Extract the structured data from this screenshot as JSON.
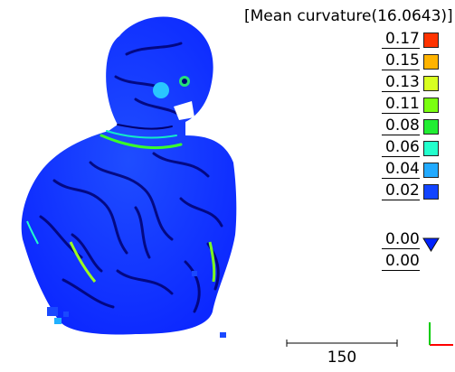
{
  "legend": {
    "title": "[Mean curvature(16.0643)]",
    "entries": [
      {
        "label": "0.17",
        "color": "#ff3300"
      },
      {
        "label": "0.15",
        "color": "#ffb300"
      },
      {
        "label": "0.13",
        "color": "#d8ff20"
      },
      {
        "label": "0.11",
        "color": "#7aff10"
      },
      {
        "label": "0.08",
        "color": "#22ee33"
      },
      {
        "label": "0.06",
        "color": "#22ffcc"
      },
      {
        "label": "0.04",
        "color": "#22aaff"
      },
      {
        "label": "0.02",
        "color": "#1144ff"
      },
      {
        "label": "0.00",
        "color": "#0022ff",
        "marker": "down-triangle"
      },
      {
        "label": "0.00"
      }
    ]
  },
  "scale_bar": {
    "label": "150"
  },
  "axes": {
    "x_color": "#ff0000",
    "y_color": "#00cc00"
  },
  "colors": {
    "surface_base": "#1133ff",
    "ridge": "#00006e"
  }
}
